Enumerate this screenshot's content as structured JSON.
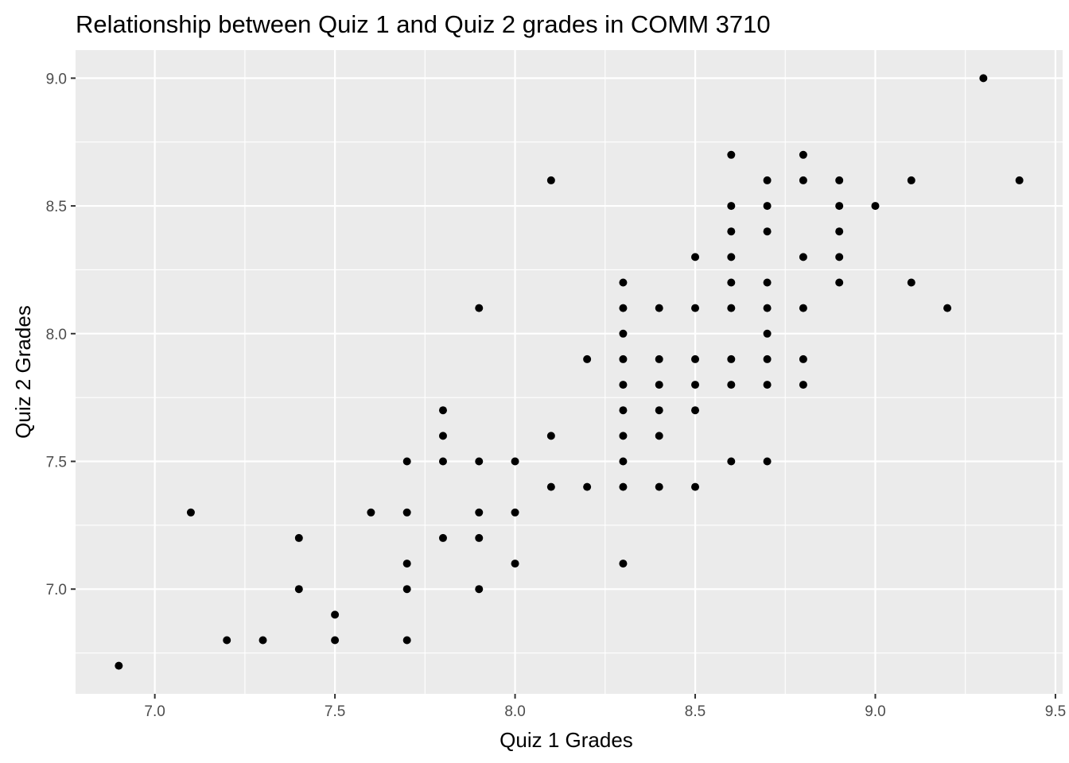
{
  "chart_data": {
    "type": "scatter",
    "title": "Relationship between Quiz 1 and Quiz 2 grades in COMM 3710",
    "xlabel": "Quiz 1 Grades",
    "ylabel": "Quiz 2 Grades",
    "xlim": [
      6.78,
      9.52
    ],
    "ylim": [
      6.59,
      9.11
    ],
    "x_ticks": [
      "7.0",
      "7.5",
      "8.0",
      "8.5",
      "9.0",
      "9.5"
    ],
    "y_ticks": [
      "7.0",
      "7.5",
      "8.0",
      "8.5",
      "9.0"
    ],
    "grid": true,
    "background_color": "#ebebeb",
    "point_color": "#000000",
    "points": [
      [
        6.9,
        6.7
      ],
      [
        7.1,
        7.3
      ],
      [
        7.2,
        6.8
      ],
      [
        7.3,
        6.8
      ],
      [
        7.4,
        7.2
      ],
      [
        7.4,
        7.0
      ],
      [
        7.5,
        6.9
      ],
      [
        7.5,
        6.8
      ],
      [
        7.6,
        7.3
      ],
      [
        7.7,
        7.5
      ],
      [
        7.7,
        7.3
      ],
      [
        7.7,
        7.1
      ],
      [
        7.7,
        7.0
      ],
      [
        7.7,
        6.8
      ],
      [
        7.8,
        7.7
      ],
      [
        7.8,
        7.6
      ],
      [
        7.8,
        7.5
      ],
      [
        7.8,
        7.2
      ],
      [
        7.9,
        8.1
      ],
      [
        7.9,
        7.5
      ],
      [
        7.9,
        7.3
      ],
      [
        7.9,
        7.2
      ],
      [
        7.9,
        7.0
      ],
      [
        8.0,
        7.5
      ],
      [
        8.0,
        7.3
      ],
      [
        8.0,
        7.1
      ],
      [
        8.1,
        8.6
      ],
      [
        8.1,
        7.6
      ],
      [
        8.1,
        7.4
      ],
      [
        8.2,
        7.9
      ],
      [
        8.2,
        7.4
      ],
      [
        8.3,
        8.2
      ],
      [
        8.3,
        8.1
      ],
      [
        8.3,
        8.0
      ],
      [
        8.3,
        7.9
      ],
      [
        8.3,
        7.8
      ],
      [
        8.3,
        7.7
      ],
      [
        8.3,
        7.6
      ],
      [
        8.3,
        7.5
      ],
      [
        8.3,
        7.4
      ],
      [
        8.3,
        7.1
      ],
      [
        8.4,
        8.1
      ],
      [
        8.4,
        7.9
      ],
      [
        8.4,
        7.8
      ],
      [
        8.4,
        7.7
      ],
      [
        8.4,
        7.6
      ],
      [
        8.4,
        7.4
      ],
      [
        8.5,
        8.3
      ],
      [
        8.5,
        8.1
      ],
      [
        8.5,
        7.9
      ],
      [
        8.5,
        7.8
      ],
      [
        8.5,
        7.7
      ],
      [
        8.5,
        7.4
      ],
      [
        8.6,
        8.7
      ],
      [
        8.6,
        8.5
      ],
      [
        8.6,
        8.4
      ],
      [
        8.6,
        8.3
      ],
      [
        8.6,
        8.2
      ],
      [
        8.6,
        8.1
      ],
      [
        8.6,
        7.9
      ],
      [
        8.6,
        7.8
      ],
      [
        8.6,
        7.5
      ],
      [
        8.7,
        8.6
      ],
      [
        8.7,
        8.5
      ],
      [
        8.7,
        8.4
      ],
      [
        8.7,
        8.2
      ],
      [
        8.7,
        8.1
      ],
      [
        8.7,
        8.0
      ],
      [
        8.7,
        7.9
      ],
      [
        8.7,
        7.8
      ],
      [
        8.7,
        7.5
      ],
      [
        8.8,
        8.7
      ],
      [
        8.8,
        8.6
      ],
      [
        8.8,
        8.3
      ],
      [
        8.8,
        8.1
      ],
      [
        8.8,
        7.9
      ],
      [
        8.8,
        7.8
      ],
      [
        8.9,
        8.6
      ],
      [
        8.9,
        8.5
      ],
      [
        8.9,
        8.4
      ],
      [
        8.9,
        8.3
      ],
      [
        8.9,
        8.2
      ],
      [
        9.0,
        8.5
      ],
      [
        9.1,
        8.6
      ],
      [
        9.1,
        8.2
      ],
      [
        9.2,
        8.1
      ],
      [
        9.3,
        9.0
      ],
      [
        9.4,
        8.6
      ]
    ]
  }
}
